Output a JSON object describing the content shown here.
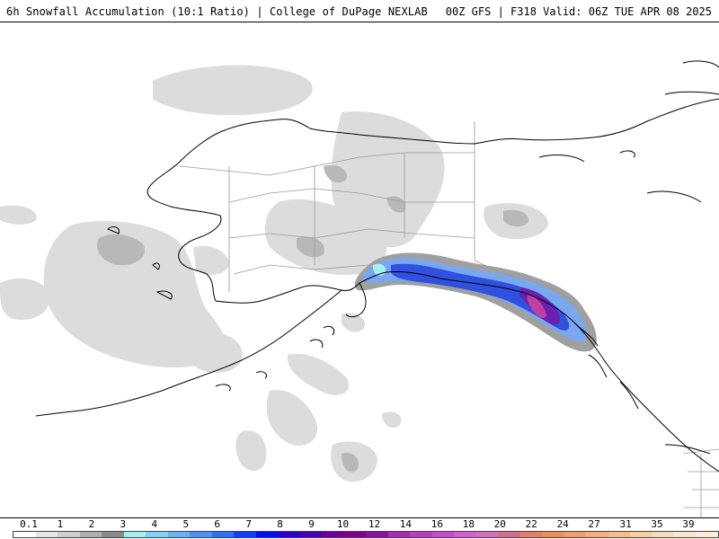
{
  "header": {
    "title_left": "6h Snowfall Accumulation (10:1 Ratio) | College of DuPage NEXLAB",
    "title_right": "00Z GFS | F318 Valid: 06Z TUE APR 08 2025"
  },
  "legend": {
    "tick_labels": [
      "0.1",
      "1",
      "2",
      "3",
      "4",
      "5",
      "6",
      "7",
      "8",
      "9",
      "10",
      "12",
      "14",
      "16",
      "18",
      "20",
      "22",
      "24",
      "27",
      "31",
      "35",
      "39"
    ],
    "colors": [
      "#ffffff",
      "#e6e6e6",
      "#cfcfcf",
      "#b0b0b0",
      "#8a8a8a",
      "#a8f0f0",
      "#8ad0f0",
      "#6fb0f0",
      "#5090f0",
      "#3070f0",
      "#1040f0",
      "#0010e8",
      "#2a00c8",
      "#4a00b0",
      "#6a0098",
      "#800088",
      "#8a10a0",
      "#a030b0",
      "#b040c0",
      "#c050c8",
      "#d060d0",
      "#d070c0",
      "#d07090",
      "#e08070",
      "#e89060",
      "#f0a070",
      "#f0b080",
      "#f0c090",
      "#f5d0a8",
      "#f8dcc0",
      "#fae6d0",
      "#fcecdc"
    ]
  },
  "map": {
    "region": "Alaska",
    "background_color": "#ffffff",
    "coast_color": "#000000",
    "border_color": "#9a9a9a",
    "snow_colors": {
      "light": "#dcdcdc",
      "moderate": "#b4b4b4",
      "heavy": "#8c8c8c",
      "blue_light": "#7aa8f0",
      "blue": "#3050e0",
      "purple": "#6a20b0",
      "magenta": "#c040a0"
    }
  }
}
